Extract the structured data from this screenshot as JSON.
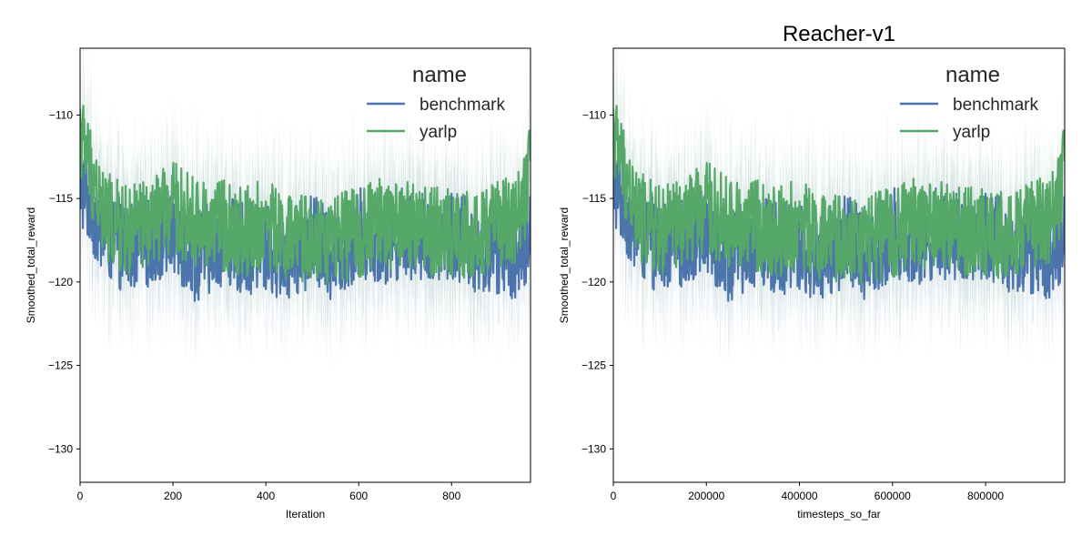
{
  "colors": {
    "benchmark": "#4c72b0",
    "yarlp": "#55a868",
    "axes": "#000000"
  },
  "legend": {
    "title": "name",
    "placement": "upper-right"
  },
  "chart_data": [
    {
      "type": "line",
      "title": "",
      "xlabel": "Iteration",
      "ylabel": "Smoothed_total_reward",
      "xlim": [
        0,
        970
      ],
      "ylim": [
        -132,
        -106
      ],
      "xticks": [
        0,
        200,
        400,
        600,
        800
      ],
      "xtick_labels": [
        "0",
        "200",
        "400",
        "600",
        "800"
      ],
      "yticks": [
        -110,
        -115,
        -120,
        -125,
        -130
      ],
      "ytick_labels": [
        "−110",
        "−115",
        "−120",
        "−125",
        "−130"
      ],
      "grid": false,
      "x": [
        0,
        50,
        100,
        150,
        200,
        250,
        300,
        350,
        400,
        450,
        500,
        550,
        600,
        650,
        700,
        750,
        800,
        850,
        900,
        950,
        970
      ],
      "series": [
        {
          "name": "benchmark",
          "values": [
            -114.0,
            -117.0,
            -118.0,
            -117.5,
            -117.0,
            -118.5,
            -117.5,
            -118.0,
            -118.0,
            -118.5,
            -117.5,
            -118.5,
            -117.0,
            -117.5,
            -117.0,
            -117.5,
            -117.0,
            -118.0,
            -118.0,
            -118.5,
            -117.5
          ]
        },
        {
          "name": "yarlp",
          "values": [
            -111.0,
            -116.0,
            -117.0,
            -116.5,
            -115.5,
            -116.5,
            -116.5,
            -117.0,
            -116.5,
            -117.5,
            -117.5,
            -117.5,
            -117.0,
            -116.5,
            -116.5,
            -117.0,
            -117.0,
            -117.5,
            -116.5,
            -116.0,
            -113.0
          ]
        }
      ]
    },
    {
      "type": "line",
      "title": "Reacher-v1",
      "xlabel": "timesteps_so_far",
      "ylabel": "Smoothed_total_reward",
      "xlim": [
        0,
        970000
      ],
      "ylim": [
        -132,
        -106
      ],
      "xticks": [
        0,
        200000,
        400000,
        600000,
        800000
      ],
      "xtick_labels": [
        "0",
        "200000",
        "400000",
        "600000",
        "800000"
      ],
      "yticks": [
        -110,
        -115,
        -120,
        -125,
        -130
      ],
      "ytick_labels": [
        "−110",
        "−115",
        "−120",
        "−125",
        "−130"
      ],
      "grid": false,
      "x": [
        0,
        50000,
        100000,
        150000,
        200000,
        250000,
        300000,
        350000,
        400000,
        450000,
        500000,
        550000,
        600000,
        650000,
        700000,
        750000,
        800000,
        850000,
        900000,
        950000,
        970000
      ],
      "series": [
        {
          "name": "benchmark",
          "values": [
            -114.0,
            -117.0,
            -118.0,
            -117.5,
            -117.0,
            -118.5,
            -117.5,
            -118.0,
            -118.0,
            -118.5,
            -117.5,
            -118.5,
            -117.0,
            -117.5,
            -117.0,
            -117.5,
            -117.0,
            -118.0,
            -118.0,
            -118.5,
            -117.5
          ]
        },
        {
          "name": "yarlp",
          "values": [
            -111.0,
            -116.0,
            -117.0,
            -116.5,
            -115.5,
            -116.5,
            -116.5,
            -117.0,
            -116.5,
            -117.5,
            -117.5,
            -117.5,
            -117.0,
            -116.5,
            -116.5,
            -117.0,
            -117.0,
            -117.5,
            -116.5,
            -116.0,
            -113.0
          ]
        }
      ]
    }
  ]
}
